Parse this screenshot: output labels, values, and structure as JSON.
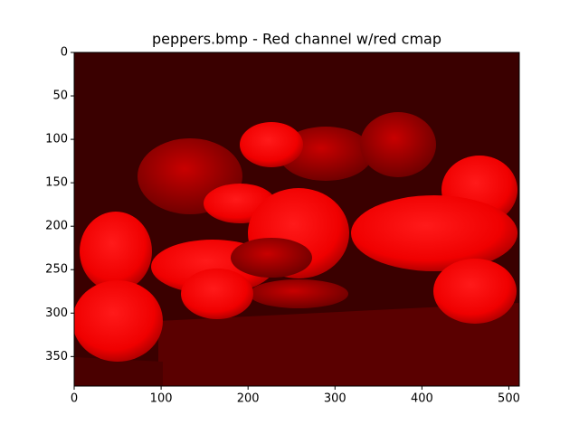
{
  "chart_data": {
    "type": "image",
    "title": "peppers.bmp - Red channel w/red cmap",
    "xlim": [
      0,
      512
    ],
    "xticks": [
      0,
      100,
      200,
      300,
      400,
      500
    ],
    "ylim": [
      384,
      0
    ],
    "yticks": [
      0,
      50,
      100,
      150,
      200,
      250,
      300,
      350
    ]
  }
}
